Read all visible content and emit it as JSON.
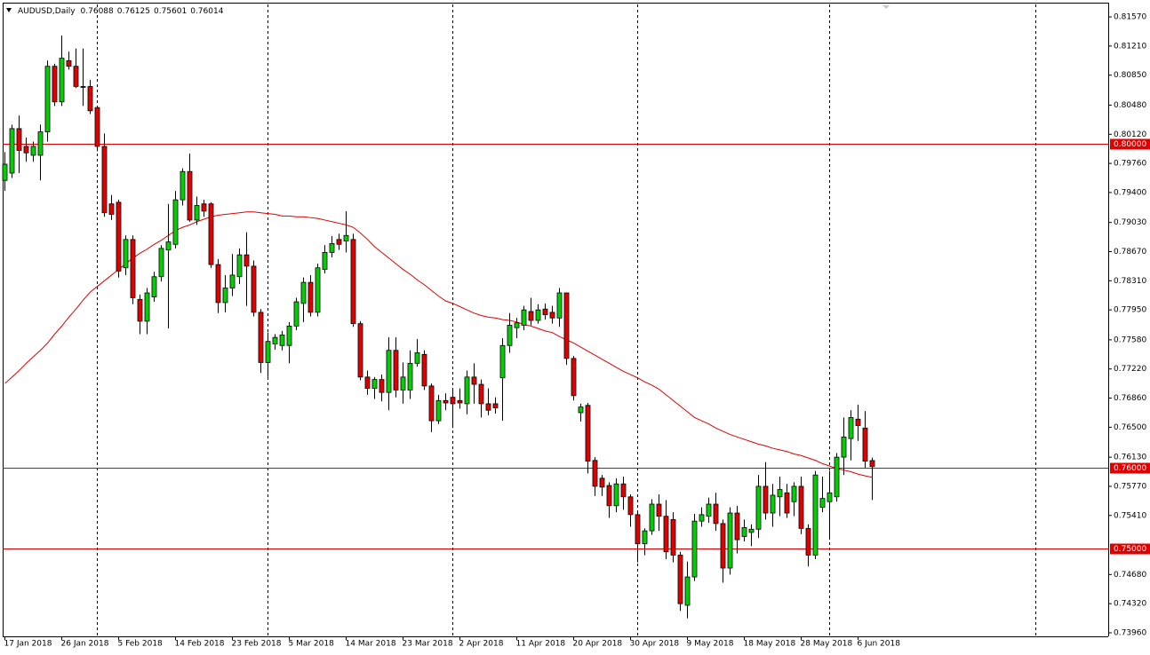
{
  "chart_data": {
    "type": "candlestick",
    "title": "AUDUSD,Daily",
    "categories": [
      "17 Jan 2018",
      null,
      null,
      null,
      null,
      null,
      null,
      null,
      "26 Jan 2018",
      null,
      null,
      null,
      null,
      null,
      null,
      null,
      "5 Feb 2018",
      null,
      null,
      null,
      null,
      null,
      null,
      null,
      "14 Feb 2018",
      null,
      null,
      null,
      null,
      null,
      null,
      null,
      "23 Feb 2018",
      null,
      null,
      null,
      null,
      null,
      null,
      null,
      "5 Mar 2018",
      null,
      null,
      null,
      null,
      null,
      null,
      null,
      "14 Mar 2018",
      null,
      null,
      null,
      null,
      null,
      null,
      null,
      "23 Mar 2018",
      null,
      null,
      null,
      null,
      null,
      null,
      null,
      "2 Apr 2018",
      null,
      null,
      null,
      null,
      null,
      null,
      null,
      "11 Apr 2018",
      null,
      null,
      null,
      null,
      null,
      null,
      null,
      "20 Apr 2018",
      null,
      null,
      null,
      null,
      null,
      null,
      null,
      "30 Apr 2018",
      null,
      null,
      null,
      null,
      null,
      null,
      null,
      "9 May 2018",
      null,
      null,
      null,
      null,
      null,
      null,
      null,
      "18 May 2018",
      null,
      null,
      null,
      null,
      null,
      null,
      null,
      "28 May 2018",
      null,
      null,
      null,
      null,
      null,
      null,
      null,
      "6 Jun 2018",
      null,
      null
    ],
    "open": [
      0.7955,
      0.7964,
      0.8019,
      0.7997,
      0.7986,
      0.7986,
      0.8015,
      0.8096,
      0.8052,
      0.8103,
      0.8096,
      0.8071,
      0.8071,
      0.8045,
      0.7997,
      0.7926,
      0.7928,
      0.7847,
      0.7882,
      0.7808,
      0.7781,
      0.7811,
      0.7836,
      0.7869,
      0.7876,
      0.7931,
      0.7966,
      0.7906,
      0.7926,
      0.7926,
      0.7851,
      0.7804,
      0.7822,
      0.7836,
      0.7863,
      0.7849,
      0.7792,
      0.773,
      0.7753,
      0.7751,
      0.7751,
      0.7775,
      0.7803,
      0.7829,
      0.7792,
      0.7845,
      0.7866,
      0.7882,
      0.788,
      0.7882,
      0.7778,
      0.7712,
      0.7698,
      0.7709,
      0.7693,
      0.7745,
      0.7696,
      0.7696,
      0.7729,
      0.774,
      0.7701,
      0.7658,
      0.7683,
      0.7687,
      0.7683,
      0.7679,
      0.7712,
      0.7703,
      0.7679,
      0.7679,
      0.7711,
      0.7751,
      0.7773,
      0.7776,
      0.7793,
      0.7782,
      0.7796,
      0.7792,
      0.7785,
      0.7816,
      0.7735,
      0.7668,
      0.7677,
      0.7609,
      0.7587,
      0.7578,
      0.7553,
      0.758,
      0.7564,
      0.7542,
      0.7506,
      0.7522,
      0.7555,
      0.754,
      0.7536,
      0.7492,
      0.743,
      0.7465,
      0.7534,
      0.754,
      0.7555,
      0.7531,
      0.7476,
      0.7544,
      0.7515,
      0.752,
      0.7524,
      0.7577,
      0.7544,
      0.7564,
      0.7569,
      0.7558,
      0.7577,
      0.7525,
      0.7492,
      0.7551,
      0.7558,
      0.7564,
      0.7613,
      0.7636,
      0.766,
      0.7649,
      0.76088
    ],
    "high": [
      0.799,
      0.8024,
      0.8035,
      0.8008,
      0.8003,
      0.8024,
      0.8103,
      0.8099,
      0.8134,
      0.8114,
      0.8118,
      0.8118,
      0.8079,
      0.8047,
      0.8013,
      0.7937,
      0.7931,
      0.7887,
      0.7887,
      0.7814,
      0.7822,
      0.7842,
      0.7875,
      0.7926,
      0.7942,
      0.797,
      0.7988,
      0.7935,
      0.7931,
      0.7928,
      0.7858,
      0.7838,
      0.7864,
      0.7871,
      0.7891,
      0.7856,
      0.7796,
      0.7767,
      0.7765,
      0.7769,
      0.778,
      0.781,
      0.7835,
      0.7838,
      0.7852,
      0.7875,
      0.7886,
      0.7889,
      0.7917,
      0.7889,
      0.7781,
      0.772,
      0.7712,
      0.7715,
      0.7761,
      0.7761,
      0.773,
      0.7745,
      0.7759,
      0.7745,
      0.7704,
      0.769,
      0.7692,
      0.7696,
      0.7698,
      0.772,
      0.7729,
      0.7709,
      0.7698,
      0.7687,
      0.776,
      0.7791,
      0.7785,
      0.78,
      0.781,
      0.7802,
      0.7803,
      0.78,
      0.7822,
      0.7815,
      0.7738,
      0.7679,
      0.768,
      0.7613,
      0.7591,
      0.7582,
      0.7587,
      0.7589,
      0.7567,
      0.7545,
      0.7525,
      0.7561,
      0.7567,
      0.756,
      0.7545,
      0.7496,
      0.7484,
      0.7543,
      0.7551,
      0.7563,
      0.7569,
      0.7536,
      0.7551,
      0.7553,
      0.7536,
      0.753,
      0.7591,
      0.7607,
      0.758,
      0.7589,
      0.758,
      0.7582,
      0.7589,
      0.753,
      0.7596,
      0.7589,
      0.7596,
      0.7618,
      0.7662,
      0.7671,
      0.7678,
      0.767,
      0.76125
    ],
    "low": [
      0.7942,
      0.7958,
      0.7964,
      0.7978,
      0.7978,
      0.7955,
      0.8003,
      0.8047,
      0.8047,
      0.8092,
      0.8069,
      0.8047,
      0.8037,
      0.7991,
      0.791,
      0.7906,
      0.7835,
      0.7838,
      0.7802,
      0.7765,
      0.7765,
      0.7805,
      0.783,
      0.7772,
      0.7871,
      0.7924,
      0.7904,
      0.79,
      0.791,
      0.7847,
      0.7791,
      0.7792,
      0.7812,
      0.7827,
      0.78,
      0.7787,
      0.7717,
      0.7712,
      0.7746,
      0.7745,
      0.7729,
      0.777,
      0.778,
      0.7787,
      0.7787,
      0.784,
      0.786,
      0.7869,
      0.7866,
      0.7774,
      0.7708,
      0.769,
      0.7685,
      0.7682,
      0.7671,
      0.7687,
      0.7679,
      0.7685,
      0.7725,
      0.7696,
      0.7644,
      0.7654,
      0.7671,
      0.7649,
      0.7673,
      0.7666,
      0.7679,
      0.7662,
      0.7665,
      0.7667,
      0.7658,
      0.7742,
      0.776,
      0.777,
      0.7776,
      0.7778,
      0.7783,
      0.7778,
      0.7774,
      0.7727,
      0.7683,
      0.7657,
      0.7593,
      0.7565,
      0.7565,
      0.7538,
      0.7545,
      0.7548,
      0.7527,
      0.7483,
      0.7492,
      0.7517,
      0.7522,
      0.7487,
      0.7483,
      0.7423,
      0.7414,
      0.746,
      0.7527,
      0.7532,
      0.7522,
      0.7458,
      0.7468,
      0.7494,
      0.7509,
      0.7503,
      0.7513,
      0.7536,
      0.7527,
      0.754,
      0.7538,
      0.754,
      0.7518,
      0.7478,
      0.7487,
      0.7545,
      0.7511,
      0.7558,
      0.7591,
      0.7609,
      0.7633,
      0.76,
      0.75601
    ],
    "close": [
      0.7975,
      0.8019,
      0.7992,
      0.7989,
      0.7997,
      0.8015,
      0.8096,
      0.8052,
      0.8106,
      0.8096,
      0.8071,
      0.807,
      0.8041,
      0.7997,
      0.7915,
      0.7913,
      0.7843,
      0.7882,
      0.781,
      0.7781,
      0.7816,
      0.7836,
      0.7871,
      0.7879,
      0.7931,
      0.7966,
      0.7906,
      0.7924,
      0.7917,
      0.7851,
      0.7804,
      0.7822,
      0.7838,
      0.7863,
      0.7849,
      0.7792,
      0.773,
      0.7756,
      0.7761,
      0.7764,
      0.7775,
      0.7805,
      0.7829,
      0.7792,
      0.7847,
      0.7866,
      0.7877,
      0.7876,
      0.7887,
      0.7778,
      0.7712,
      0.7698,
      0.7709,
      0.7693,
      0.7745,
      0.7696,
      0.7712,
      0.7729,
      0.7742,
      0.7701,
      0.7658,
      0.7683,
      0.768,
      0.7679,
      0.768,
      0.7712,
      0.7703,
      0.7679,
      0.7671,
      0.7674,
      0.7751,
      0.7776,
      0.7779,
      0.7795,
      0.7782,
      0.7795,
      0.7789,
      0.7785,
      0.7816,
      0.7735,
      0.7689,
      0.7675,
      0.7608,
      0.7577,
      0.7576,
      0.7553,
      0.758,
      0.7564,
      0.7542,
      0.7506,
      0.7522,
      0.7555,
      0.754,
      0.7496,
      0.7492,
      0.7432,
      0.7465,
      0.7534,
      0.7542,
      0.7555,
      0.7531,
      0.7476,
      0.7544,
      0.7511,
      0.7526,
      0.7524,
      0.7577,
      0.7544,
      0.7566,
      0.7573,
      0.7544,
      0.7577,
      0.7525,
      0.7492,
      0.7591,
      0.7562,
      0.7569,
      0.7613,
      0.7638,
      0.7662,
      0.7652,
      0.7608,
      0.76014
    ],
    "up_color": "#00d000",
    "down_color": "#e00000",
    "series": [
      {
        "color": "#e00000",
        "values": [
          0.7704,
          0.7712,
          0.772,
          0.7729,
          0.7737,
          0.7745,
          0.7754,
          0.7765,
          0.7775,
          0.7786,
          0.7796,
          0.7807,
          0.7817,
          0.7824,
          0.7831,
          0.7838,
          0.7845,
          0.7852,
          0.7859,
          0.7865,
          0.787,
          0.7876,
          0.7881,
          0.7887,
          0.7893,
          0.7897,
          0.79,
          0.7904,
          0.7907,
          0.791,
          0.7912,
          0.7913,
          0.7914,
          0.7915,
          0.7916,
          0.7916,
          0.7915,
          0.7914,
          0.7913,
          0.7911,
          0.7911,
          0.791,
          0.791,
          0.7909,
          0.7908,
          0.7906,
          0.7904,
          0.7902,
          0.79,
          0.7897,
          0.789,
          0.7882,
          0.7873,
          0.7866,
          0.7859,
          0.7852,
          0.7845,
          0.7839,
          0.7832,
          0.7826,
          0.7819,
          0.7812,
          0.7806,
          0.7803,
          0.7799,
          0.7795,
          0.7791,
          0.7788,
          0.7786,
          0.7785,
          0.7783,
          0.7782,
          0.778,
          0.7777,
          0.7775,
          0.7772,
          0.7769,
          0.7767,
          0.7762,
          0.7758,
          0.7754,
          0.7749,
          0.7744,
          0.7739,
          0.7734,
          0.7729,
          0.7724,
          0.7719,
          0.7715,
          0.7711,
          0.7706,
          0.7702,
          0.7697,
          0.769,
          0.7683,
          0.7676,
          0.7669,
          0.7662,
          0.7658,
          0.7654,
          0.7649,
          0.7645,
          0.7641,
          0.7638,
          0.7635,
          0.7632,
          0.7629,
          0.7627,
          0.7624,
          0.7622,
          0.762,
          0.7617,
          0.7615,
          0.7612,
          0.7609,
          0.7605,
          0.7602,
          0.7599,
          0.7597,
          0.7595,
          0.7592,
          0.759,
          0.7588
        ]
      }
    ],
    "levels": [
      {
        "value": 0.8,
        "label": "0.80000"
      },
      {
        "value": 0.76,
        "label": "0.76000"
      },
      {
        "value": 0.75,
        "label": "0.75000"
      }
    ],
    "level_color": "#e00000",
    "ylim": [
      0.73916,
      0.81724
    ],
    "yticks": [
      {
        "value": 0.8157,
        "label": "0.81570"
      },
      {
        "value": 0.8121,
        "label": "0.81210"
      },
      {
        "value": 0.8085,
        "label": "0.80850"
      },
      {
        "value": 0.8048,
        "label": "0.80480"
      },
      {
        "value": 0.8012,
        "label": "0.80120"
      },
      {
        "value": 0.7976,
        "label": "0.79760"
      },
      {
        "value": 0.794,
        "label": "0.79400"
      },
      {
        "value": 0.7903,
        "label": "0.79030"
      },
      {
        "value": 0.7867,
        "label": "0.78670"
      },
      {
        "value": 0.7831,
        "label": "0.78310"
      },
      {
        "value": 0.7795,
        "label": "0.77950"
      },
      {
        "value": 0.7758,
        "label": "0.77580"
      },
      {
        "value": 0.7722,
        "label": "0.77220"
      },
      {
        "value": 0.7686,
        "label": "0.76860"
      },
      {
        "value": 0.765,
        "label": "0.76500"
      },
      {
        "value": 0.7613,
        "label": "0.76130"
      },
      {
        "value": 0.7577,
        "label": "0.75770"
      },
      {
        "value": 0.7541,
        "label": "0.75410"
      },
      {
        "value": 0.7468,
        "label": "0.74680"
      },
      {
        "value": 0.7432,
        "label": "0.74320"
      },
      {
        "value": 0.7396,
        "label": "0.73960"
      }
    ],
    "grid": false
  }
}
